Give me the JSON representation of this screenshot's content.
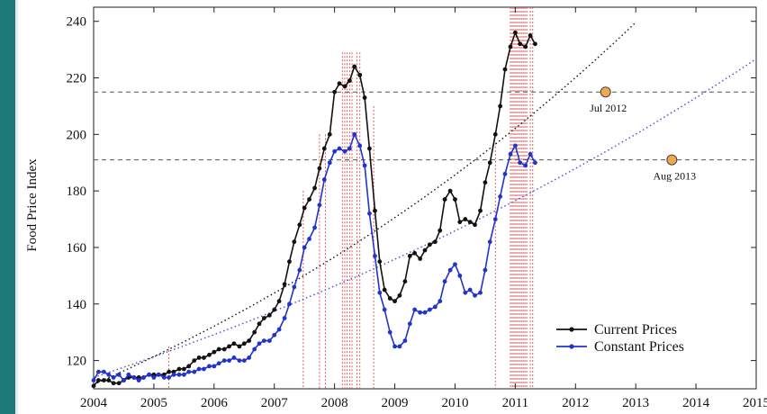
{
  "chart_data": {
    "type": "line",
    "ylabel": "Food Price Index",
    "xlabel": "",
    "xlim": [
      2004,
      2015
    ],
    "ylim": [
      110,
      245
    ],
    "x_ticks": [
      2004,
      2005,
      2006,
      2007,
      2008,
      2009,
      2010,
      2011,
      2012,
      2013,
      2014,
      2015
    ],
    "y_ticks": [
      120,
      140,
      160,
      180,
      200,
      220,
      240
    ],
    "grid": false,
    "legend_position": "bottom-right",
    "colors": {
      "current": "#111111",
      "constant": "#2233cc",
      "threshold": "#555555",
      "projection_current": "#111111",
      "projection_constant": "#4a4ad0",
      "event_lines": "#d44a4a",
      "marker_fill": "#f0a850"
    },
    "series": [
      {
        "name": "Current Prices",
        "key": "current",
        "x": [
          2004.0,
          2004.08,
          2004.17,
          2004.25,
          2004.33,
          2004.42,
          2004.5,
          2004.58,
          2004.67,
          2004.75,
          2004.83,
          2004.92,
          2005.0,
          2005.08,
          2005.17,
          2005.25,
          2005.33,
          2005.42,
          2005.5,
          2005.58,
          2005.67,
          2005.75,
          2005.83,
          2005.92,
          2006.0,
          2006.08,
          2006.17,
          2006.25,
          2006.33,
          2006.42,
          2006.5,
          2006.58,
          2006.67,
          2006.75,
          2006.83,
          2006.92,
          2007.0,
          2007.08,
          2007.17,
          2007.25,
          2007.33,
          2007.42,
          2007.5,
          2007.58,
          2007.67,
          2007.75,
          2007.83,
          2007.92,
          2008.0,
          2008.08,
          2008.17,
          2008.25,
          2008.33,
          2008.42,
          2008.5,
          2008.58,
          2008.67,
          2008.75,
          2008.83,
          2008.92,
          2009.0,
          2009.08,
          2009.17,
          2009.25,
          2009.33,
          2009.42,
          2009.5,
          2009.58,
          2009.67,
          2009.75,
          2009.83,
          2009.92,
          2010.0,
          2010.08,
          2010.17,
          2010.25,
          2010.33,
          2010.42,
          2010.5,
          2010.58,
          2010.67,
          2010.75,
          2010.83,
          2010.92,
          2011.0,
          2011.08,
          2011.17,
          2011.25,
          2011.33
        ],
        "values": [
          111,
          113,
          113,
          113,
          112,
          112,
          113,
          114,
          114,
          114,
          114,
          115,
          115,
          115,
          115,
          116,
          116,
          117,
          117,
          118,
          120,
          121,
          121,
          122,
          123,
          124,
          124,
          125,
          126,
          125,
          126,
          127,
          130,
          133,
          135,
          136,
          138,
          141,
          147,
          155,
          162,
          168,
          174,
          177,
          181,
          188,
          195,
          200,
          215,
          218,
          217,
          219,
          224,
          221,
          213,
          195,
          173,
          155,
          145,
          142,
          141,
          143,
          148,
          157,
          158,
          156,
          159,
          161,
          162,
          166,
          177,
          180,
          177,
          169,
          170,
          169,
          168,
          173,
          183,
          190,
          200,
          210,
          223,
          231,
          236,
          232,
          231,
          235,
          232
        ]
      },
      {
        "name": "Constant Prices",
        "key": "constant",
        "x": [
          2004.0,
          2004.08,
          2004.17,
          2004.25,
          2004.33,
          2004.42,
          2004.5,
          2004.58,
          2004.67,
          2004.75,
          2004.83,
          2004.92,
          2005.0,
          2005.08,
          2005.17,
          2005.25,
          2005.33,
          2005.42,
          2005.5,
          2005.58,
          2005.67,
          2005.75,
          2005.83,
          2005.92,
          2006.0,
          2006.08,
          2006.17,
          2006.25,
          2006.33,
          2006.42,
          2006.5,
          2006.58,
          2006.67,
          2006.75,
          2006.83,
          2006.92,
          2007.0,
          2007.08,
          2007.17,
          2007.25,
          2007.33,
          2007.42,
          2007.5,
          2007.58,
          2007.67,
          2007.75,
          2007.83,
          2007.92,
          2008.0,
          2008.08,
          2008.17,
          2008.25,
          2008.33,
          2008.42,
          2008.5,
          2008.58,
          2008.67,
          2008.75,
          2008.83,
          2008.92,
          2009.0,
          2009.08,
          2009.17,
          2009.25,
          2009.33,
          2009.42,
          2009.5,
          2009.58,
          2009.67,
          2009.75,
          2009.83,
          2009.92,
          2010.0,
          2010.08,
          2010.17,
          2010.25,
          2010.33,
          2010.42,
          2010.5,
          2010.58,
          2010.67,
          2010.75,
          2010.83,
          2010.92,
          2011.0,
          2011.08,
          2011.17,
          2011.25,
          2011.33
        ],
        "values": [
          113,
          116,
          116,
          115,
          114,
          115,
          113,
          115,
          114,
          113,
          114,
          115,
          114,
          115,
          114,
          114,
          115,
          115,
          115,
          116,
          116,
          117,
          117,
          118,
          118,
          119,
          120,
          120,
          121,
          120,
          120,
          121,
          124,
          126,
          127,
          127,
          129,
          131,
          135,
          140,
          146,
          152,
          160,
          163,
          167,
          175,
          184,
          190,
          194,
          195,
          194,
          195,
          200,
          196,
          189,
          172,
          157,
          144,
          138,
          130,
          125,
          125,
          127,
          133,
          138,
          137,
          137,
          138,
          139,
          141,
          148,
          152,
          154,
          150,
          144,
          145,
          143,
          144,
          152,
          162,
          170,
          178,
          186,
          193,
          196,
          190,
          189,
          193,
          190
        ]
      }
    ],
    "projections": [
      {
        "key": "current",
        "start_x": 2004.0,
        "start_y": 111.5,
        "growth": 0.085,
        "end_x": 2013.04
      },
      {
        "key": "constant",
        "start_x": 2004.0,
        "start_y": 114,
        "growth": 0.0625,
        "end_x": 2015.0
      }
    ],
    "thresholds": [
      215,
      191
    ],
    "annotations": [
      {
        "label": "Jul 2012",
        "x": 2012.5,
        "y": 215
      },
      {
        "label": "Aug 2013",
        "x": 2013.6,
        "y": 191
      }
    ],
    "event_line_tops": [
      {
        "x": 2005.25,
        "top": 125
      },
      {
        "x": 2007.48,
        "top": 180
      },
      {
        "x": 2007.75,
        "top": 200
      },
      {
        "x": 2007.85,
        "top": 200
      },
      {
        "x": 2008.13,
        "top": 229
      },
      {
        "x": 2008.17,
        "top": 229
      },
      {
        "x": 2008.21,
        "top": 229
      },
      {
        "x": 2008.25,
        "top": 229
      },
      {
        "x": 2008.29,
        "top": 229
      },
      {
        "x": 2008.37,
        "top": 229
      },
      {
        "x": 2008.42,
        "top": 229
      },
      {
        "x": 2008.65,
        "top": 210
      },
      {
        "x": 2010.67,
        "top": 197
      },
      {
        "x": 2010.92,
        "top": 245
      },
      {
        "x": 2010.95,
        "top": 245
      },
      {
        "x": 2010.98,
        "top": 245
      },
      {
        "x": 2011.01,
        "top": 245
      },
      {
        "x": 2011.04,
        "top": 245
      },
      {
        "x": 2011.07,
        "top": 245
      },
      {
        "x": 2011.1,
        "top": 245
      },
      {
        "x": 2011.13,
        "top": 245
      },
      {
        "x": 2011.16,
        "top": 245
      },
      {
        "x": 2011.19,
        "top": 245
      },
      {
        "x": 2011.25,
        "top": 245
      },
      {
        "x": 2011.29,
        "top": 245
      }
    ]
  }
}
